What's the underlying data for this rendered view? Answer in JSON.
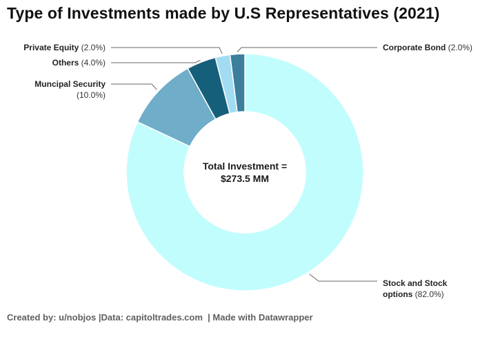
{
  "chart_data": {
    "type": "pie",
    "subtype": "donut",
    "title": "Type of Investments made by U.S Representatives (2021)",
    "center_label": [
      "Total Investment =",
      "$273.5 MM"
    ],
    "slices": [
      {
        "label": "Stock and Stock options",
        "label_lines": [
          "Stock and Stock",
          "options"
        ],
        "value": 82.0,
        "percent_text": "(82.0%)",
        "color": "#c2fdfe"
      },
      {
        "label": "Muncipal Security",
        "label_lines": [
          "Muncipal Security"
        ],
        "value": 10.0,
        "percent_text": "(10.0%)",
        "color": "#6fadc9"
      },
      {
        "label": "Others",
        "label_lines": [
          "Others"
        ],
        "value": 4.0,
        "percent_text": "(4.0%)",
        "color": "#165f7a"
      },
      {
        "label": "Private Equity",
        "label_lines": [
          "Private Equity"
        ],
        "value": 2.0,
        "percent_text": "(2.0%)",
        "color": "#a2dcf2"
      },
      {
        "label": "Corporate Bond",
        "label_lines": [
          "Corporate Bond"
        ],
        "value": 2.0,
        "percent_text": "(2.0%)",
        "color": "#3c7f9c"
      }
    ],
    "start_angle": "12 o'clock",
    "direction": "clockwise",
    "legend": "none (direct labels)"
  },
  "footer": "Created by: u/nobjos |Data: capitoltrades.com  | Made with Datawrapper"
}
